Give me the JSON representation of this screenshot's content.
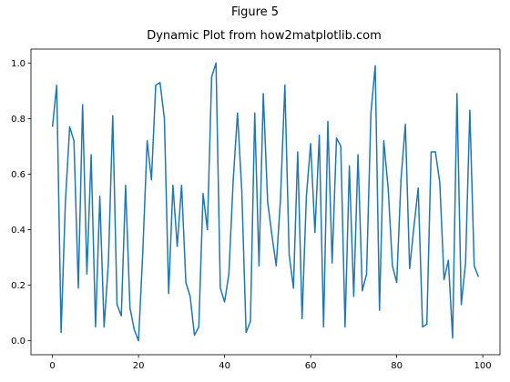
{
  "figure": {
    "suptitle": "Figure 5"
  },
  "chart_data": {
    "type": "line",
    "title": "Dynamic Plot from how2matplotlib.com",
    "xlabel": "",
    "ylabel": "",
    "xlim": [
      -5,
      104
    ],
    "ylim": [
      -0.05,
      1.05
    ],
    "xticks": [
      0,
      20,
      40,
      60,
      80,
      100
    ],
    "yticks": [
      0.0,
      0.2,
      0.4,
      0.6,
      0.8,
      1.0
    ],
    "xtick_labels": [
      "0",
      "20",
      "40",
      "60",
      "80",
      "100"
    ],
    "ytick_labels": [
      "0.0",
      "0.2",
      "0.4",
      "0.6",
      "0.8",
      "1.0"
    ],
    "grid": false,
    "series": [
      {
        "color": "#1f77b4",
        "x": [
          0,
          1,
          2,
          3,
          4,
          5,
          6,
          7,
          8,
          9,
          10,
          11,
          12,
          13,
          14,
          15,
          16,
          17,
          18,
          19,
          20,
          21,
          22,
          23,
          24,
          25,
          26,
          27,
          28,
          29,
          30,
          31,
          32,
          33,
          34,
          35,
          36,
          37,
          38,
          39,
          40,
          41,
          42,
          43,
          44,
          45,
          46,
          47,
          48,
          49,
          50,
          51,
          52,
          53,
          54,
          55,
          56,
          57,
          58,
          59,
          60,
          61,
          62,
          63,
          64,
          65,
          66,
          67,
          68,
          69,
          70,
          71,
          72,
          73,
          74,
          75,
          76,
          77,
          78,
          79,
          80,
          81,
          82,
          83,
          84,
          85,
          86,
          87,
          88,
          89,
          90,
          91,
          92,
          93,
          94,
          95,
          96,
          97,
          98,
          99
        ],
        "values": [
          0.77,
          0.92,
          0.03,
          0.5,
          0.77,
          0.72,
          0.19,
          0.85,
          0.24,
          0.67,
          0.05,
          0.52,
          0.05,
          0.28,
          0.81,
          0.13,
          0.09,
          0.56,
          0.12,
          0.04,
          0.0,
          0.32,
          0.72,
          0.58,
          0.92,
          0.93,
          0.8,
          0.17,
          0.56,
          0.34,
          0.56,
          0.21,
          0.16,
          0.02,
          0.05,
          0.53,
          0.4,
          0.95,
          1.0,
          0.19,
          0.14,
          0.24,
          0.58,
          0.82,
          0.54,
          0.03,
          0.07,
          0.82,
          0.27,
          0.89,
          0.5,
          0.38,
          0.27,
          0.51,
          0.92,
          0.31,
          0.19,
          0.68,
          0.08,
          0.52,
          0.71,
          0.39,
          0.74,
          0.05,
          0.79,
          0.28,
          0.73,
          0.7,
          0.05,
          0.63,
          0.16,
          0.67,
          0.18,
          0.24,
          0.82,
          0.99,
          0.11,
          0.72,
          0.55,
          0.27,
          0.21,
          0.58,
          0.78,
          0.26,
          0.41,
          0.55,
          0.05,
          0.06,
          0.68,
          0.68,
          0.57,
          0.22,
          0.29,
          0.01,
          0.89,
          0.13,
          0.28,
          0.83,
          0.27,
          0.23
        ]
      }
    ]
  }
}
